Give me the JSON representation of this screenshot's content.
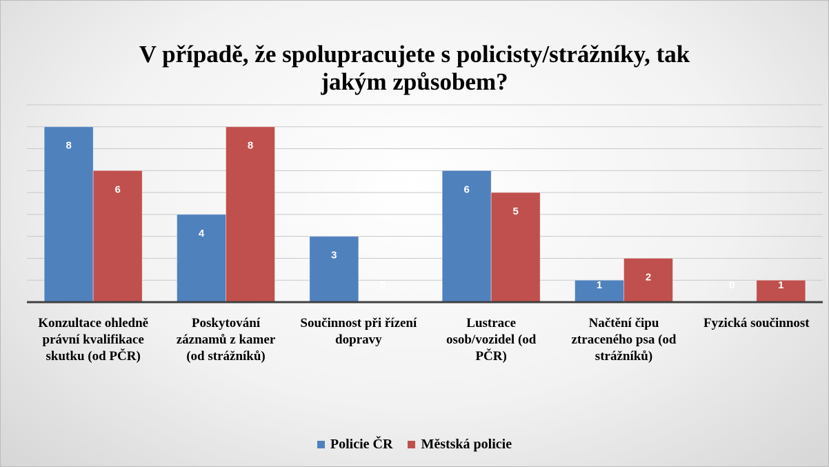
{
  "chart_data": {
    "type": "bar",
    "title": "V případě, že spolupracujete s policisty/strážníky, tak jakým způsobem?",
    "categories": [
      "Konzultace ohledně právní kvalifikace skutku (od PČR)",
      "Poskytování záznamů z kamer (od strážníků)",
      "Součinnost při řízení dopravy",
      "Lustrace osob/vozidel (od PČR)",
      "Načtění čipu ztraceného psa (od strážníků)",
      "Fyzická součinnost"
    ],
    "series": [
      {
        "name": "Policie ČR",
        "color": "#4f81bd",
        "values": [
          8,
          4,
          3,
          6,
          1,
          0
        ]
      },
      {
        "name": "Městská policie",
        "color": "#c0504d",
        "values": [
          6,
          8,
          0,
          5,
          2,
          1
        ]
      }
    ],
    "ylim": [
      0,
      9
    ],
    "yticks": [
      0,
      1,
      2,
      3,
      4,
      5,
      6,
      7,
      8,
      9
    ],
    "grid": true,
    "legend": "bottom"
  }
}
